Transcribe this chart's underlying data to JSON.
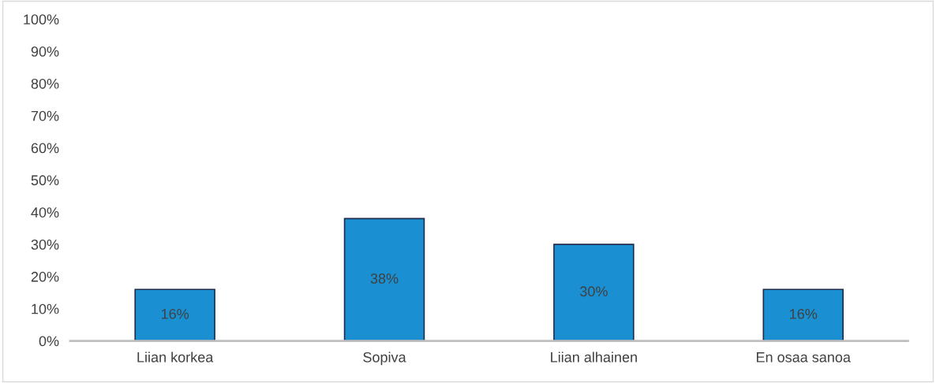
{
  "chart_data": {
    "type": "bar",
    "categories": [
      "Liian korkea",
      "Sopiva",
      "Liian alhainen",
      "En osaa sanoa"
    ],
    "values": [
      16,
      38,
      30,
      16
    ],
    "value_labels": [
      "16%",
      "38%",
      "30%",
      "16%"
    ],
    "color": "#1a90d2",
    "ylim": [
      0,
      100
    ],
    "yticks": [
      {
        "value": 0,
        "label": "0%"
      },
      {
        "value": 10,
        "label": "10%"
      },
      {
        "value": 20,
        "label": "20%"
      },
      {
        "value": 30,
        "label": "30%"
      },
      {
        "value": 40,
        "label": "40%"
      },
      {
        "value": 50,
        "label": "50%"
      },
      {
        "value": 60,
        "label": "60%"
      },
      {
        "value": 70,
        "label": "70%"
      },
      {
        "value": 80,
        "label": "80%"
      },
      {
        "value": 90,
        "label": "90%"
      },
      {
        "value": 100,
        "label": "100%"
      }
    ]
  }
}
